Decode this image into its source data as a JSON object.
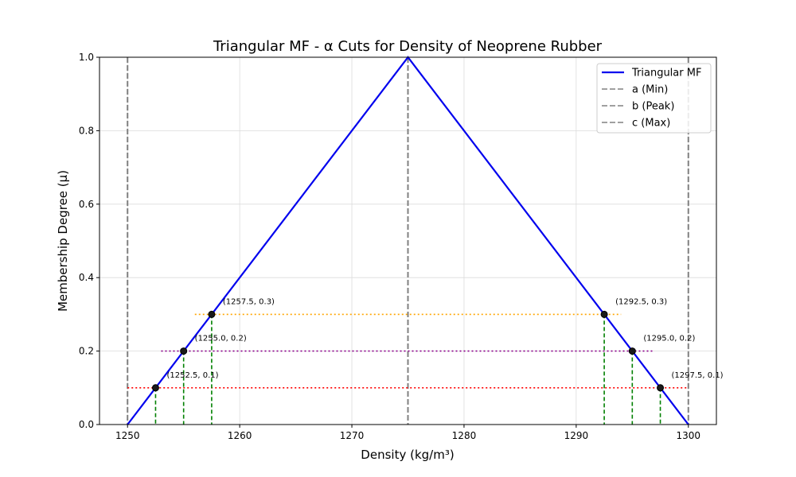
{
  "chart_data": {
    "type": "line",
    "title": "Triangular MF - α Cuts for Density of Neoprene Rubber",
    "xlabel": "Density (kg/m³)",
    "ylabel": "Membership Degree (μ)",
    "xlim": [
      1247.5,
      1302.5
    ],
    "ylim": [
      0,
      1
    ],
    "x_ticks": [
      1250,
      1260,
      1270,
      1280,
      1290,
      1300
    ],
    "y_ticks": [
      0.0,
      0.2,
      0.4,
      0.6,
      0.8,
      1.0
    ],
    "x_tick_labels": [
      "1250",
      "1260",
      "1270",
      "1280",
      "1290",
      "1300"
    ],
    "y_tick_labels": [
      "0.0",
      "0.2",
      "0.4",
      "0.6",
      "0.8",
      "1.0"
    ],
    "grid": true,
    "legend_position": "top-right",
    "triangle": {
      "name": "Triangular MF",
      "color": "#0000ee",
      "x": [
        1250,
        1275,
        1300
      ],
      "y": [
        0,
        1,
        0
      ]
    },
    "vlines": [
      {
        "name": "a (Min)",
        "x": 1250,
        "color": "#808080"
      },
      {
        "name": "b (Peak)",
        "x": 1275,
        "color": "#808080"
      },
      {
        "name": "c (Max)",
        "x": 1300,
        "color": "#808080"
      }
    ],
    "alpha_cuts": [
      {
        "alpha": 0.1,
        "left": 1252.5,
        "right": 1297.5,
        "color": "#ff0000",
        "line_x": [
          1250,
          1300
        ],
        "left_label": "(1252.5, 0.1)",
        "right_label": "(1297.5, 0.1)"
      },
      {
        "alpha": 0.2,
        "left": 1255.0,
        "right": 1295.0,
        "color": "#8b008b",
        "line_x": [
          1253,
          1297
        ],
        "left_label": "(1255.0, 0.2)",
        "right_label": "(1295.0, 0.2)"
      },
      {
        "alpha": 0.3,
        "left": 1257.5,
        "right": 1292.5,
        "color": "#ffa500",
        "line_x": [
          1256,
          1294
        ],
        "left_label": "(1257.5, 0.3)",
        "right_label": "(1292.5, 0.3)"
      }
    ],
    "drop_line_color": "#008000"
  }
}
